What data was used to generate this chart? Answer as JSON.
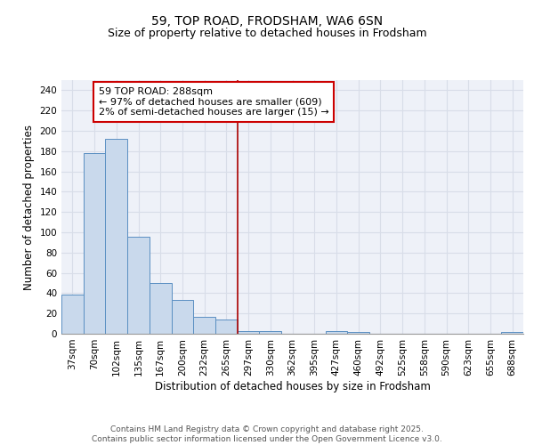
{
  "title1": "59, TOP ROAD, FRODSHAM, WA6 6SN",
  "title2": "Size of property relative to detached houses in Frodsham",
  "xlabel": "Distribution of detached houses by size in Frodsham",
  "ylabel": "Number of detached properties",
  "categories": [
    "37sqm",
    "70sqm",
    "102sqm",
    "135sqm",
    "167sqm",
    "200sqm",
    "232sqm",
    "265sqm",
    "297sqm",
    "330sqm",
    "362sqm",
    "395sqm",
    "427sqm",
    "460sqm",
    "492sqm",
    "525sqm",
    "558sqm",
    "590sqm",
    "623sqm",
    "655sqm",
    "688sqm"
  ],
  "values": [
    39,
    178,
    192,
    96,
    50,
    33,
    17,
    14,
    3,
    3,
    0,
    0,
    3,
    2,
    0,
    0,
    0,
    0,
    0,
    0,
    2
  ],
  "bar_color": "#c9d9ec",
  "bar_edge_color": "#5a8fc2",
  "vline_x": 8.0,
  "vline_color": "#aa0000",
  "annotation_text": "59 TOP ROAD: 288sqm\n← 97% of detached houses are smaller (609)\n2% of semi-detached houses are larger (15) →",
  "annotation_box_color": "#ffffff",
  "annotation_box_edge_color": "#cc0000",
  "ylim": [
    0,
    250
  ],
  "yticks": [
    0,
    20,
    40,
    60,
    80,
    100,
    120,
    140,
    160,
    180,
    200,
    220,
    240
  ],
  "footer_text": "Contains HM Land Registry data © Crown copyright and database right 2025.\nContains public sector information licensed under the Open Government Licence v3.0.",
  "bg_color": "#eef1f8",
  "grid_color": "#d8dde8",
  "title_fontsize": 10,
  "subtitle_fontsize": 9,
  "axis_label_fontsize": 8.5,
  "tick_fontsize": 7.5,
  "annotation_fontsize": 8,
  "footer_fontsize": 6.5
}
